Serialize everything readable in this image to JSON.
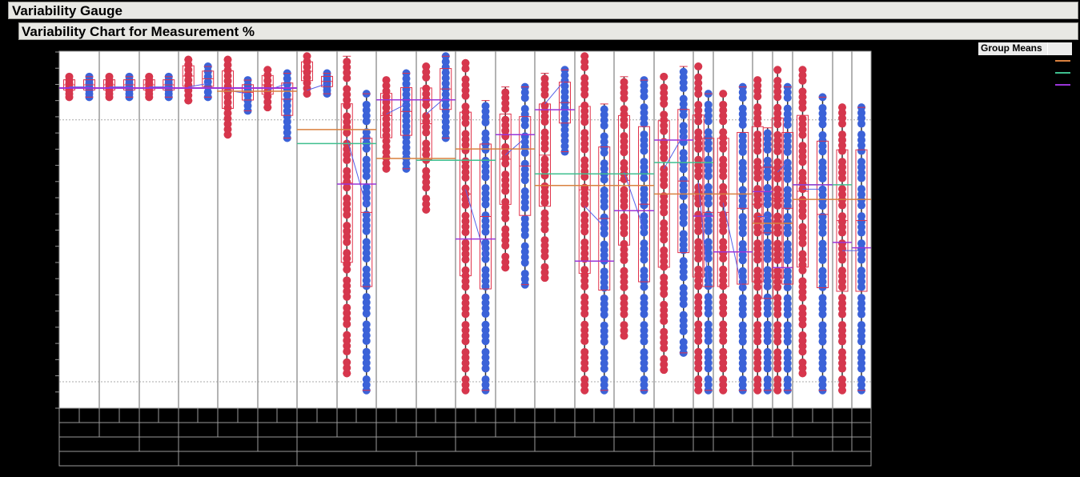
{
  "window": {
    "outline_title": "Variability Gauge",
    "chart_title": "Variability Chart for Measurement %"
  },
  "legend": {
    "title": "Group Means",
    "items": [
      {
        "label": "",
        "color": "#d9813f"
      },
      {
        "label": "",
        "color": "#3fbf8f"
      },
      {
        "label": "",
        "color": "#9a35d8"
      }
    ]
  },
  "colors": {
    "series_a": "#d5374d",
    "series_b": "#3b62d8",
    "box": "#e0324a",
    "connector": "#5560e8",
    "grid_ref": "#a8a8a8",
    "divider": "#9a9a9a"
  },
  "chart_data": {
    "type": "scatter",
    "title": "Variability Chart for Measurement %",
    "xlabel": "",
    "ylabel": "",
    "ylim": [
      0,
      100
    ],
    "y_ticks_count": 23,
    "reference_lines_y": [
      78,
      4
    ],
    "legend_position": "right",
    "note": "Tick labels and axis/group labels render black on black and are not legible; y values are estimated on a 0–100 normalized scale (top of plot = 100).",
    "x_levels": {
      "row1_cells": 41,
      "row2_cells": 23,
      "row3_cells": 14,
      "row4_cells": 6
    },
    "groups": [
      {
        "a": [
          87,
          93
        ],
        "b": [
          87,
          93
        ],
        "mean_a": 90,
        "mean_b": 90
      },
      {
        "a": [
          87,
          93
        ],
        "b": [
          87,
          93
        ],
        "mean_a": 90,
        "mean_b": 90
      },
      {
        "a": [
          87,
          93
        ],
        "b": [
          87,
          93
        ],
        "mean_a": 90,
        "mean_b": 90
      },
      {
        "a": [
          86,
          98
        ],
        "b": [
          87,
          96
        ],
        "mean_a": 90,
        "mean_b": 91
      },
      {
        "a": [
          76,
          98
        ],
        "b": [
          83,
          92
        ],
        "mean_a": 89,
        "mean_b": 88
      },
      {
        "a": [
          84,
          95
        ],
        "b": [
          75,
          94
        ],
        "mean_a": 89,
        "mean_b": 91
      },
      {
        "a": [
          88,
          99
        ],
        "b": [
          88,
          94
        ],
        "mean_a": 89,
        "mean_b": 91
      },
      {
        "a": [
          6,
          99
        ],
        "b": [
          1,
          88
        ],
        "mean_a": 75,
        "mean_b": 55
      },
      {
        "a": [
          66,
          92
        ],
        "b": [
          66,
          94
        ],
        "mean_a": 82,
        "mean_b": 85
      },
      {
        "a": [
          54,
          96
        ],
        "b": [
          75,
          99
        ],
        "mean_a": 82,
        "mean_b": 87
      },
      {
        "a": [
          1,
          97
        ],
        "b": [
          1,
          86
        ],
        "mean_a": 60,
        "mean_b": 40
      },
      {
        "a": [
          37,
          90
        ],
        "b": [
          32,
          90
        ],
        "mean_a": 70,
        "mean_b": 75
      },
      {
        "a": [
          34,
          94
        ],
        "b": [
          71,
          95
        ],
        "mean_a": 85,
        "mean_b": 92
      },
      {
        "a": [
          1,
          99
        ],
        "b": [
          1,
          85
        ],
        "mean_a": 55,
        "mean_b": 49
      },
      {
        "a": [
          17,
          93
        ],
        "b": [
          1,
          92
        ],
        "mean_a": 65,
        "mean_b": 48
      },
      {
        "a": [
          7,
          93
        ],
        "b": [
          12,
          96
        ],
        "mean_a": 66,
        "mean_b": 76
      },
      {
        "a": [
          1,
          96
        ],
        "b": [
          1,
          88
        ],
        "mean_a": 62,
        "mean_b": 32
      },
      {
        "a": [
          1,
          88
        ],
        "b": [
          1,
          90
        ],
        "mean_a": 56,
        "mean_b": 30
      },
      {
        "a": [
          1,
          92
        ],
        "b": [
          1,
          78
        ],
        "mean_a": 52,
        "mean_b": 52
      },
      {
        "a": [
          1,
          95
        ],
        "b": [
          1,
          90
        ],
        "mean_a": 65,
        "mean_b": 68
      },
      {
        "a": [
          6,
          95
        ],
        "b": [
          1,
          87
        ],
        "mean_a": 60,
        "mean_b": 60
      },
      {
        "a": [
          1,
          84
        ],
        "b": [
          1,
          84
        ],
        "mean_a": 42,
        "mean_b": 42
      }
    ],
    "group_means_lines": [
      {
        "series": "orange",
        "segments": [
          [
            371,
            470,
            77.5
          ],
          [
            470,
            569,
            69
          ],
          [
            569,
            668,
            71.8
          ],
          [
            668,
            817,
            61.1
          ],
          [
            817,
            940,
            58.6
          ],
          [
            940,
            990,
            50
          ],
          [
            990,
            1088,
            57
          ]
        ]
      },
      {
        "series": "green",
        "segments": [
          [
            371,
            470,
            73.4
          ],
          [
            520,
            619,
            68.5
          ],
          [
            668,
            817,
            64.5
          ],
          [
            817,
            891,
            67.8
          ],
          [
            990,
            1064,
            61.3
          ]
        ]
      },
      {
        "series": "purple",
        "segments": [
          [
            421,
            470,
            61.5
          ],
          [
            470,
            569,
            86.2
          ],
          [
            569,
            619,
            45.4
          ],
          [
            619,
            668,
            76
          ],
          [
            668,
            718,
            83.3
          ],
          [
            718,
            767,
            38.9
          ],
          [
            767,
            817,
            53.7
          ],
          [
            817,
            866,
            74.4
          ],
          [
            866,
            891,
            52.1
          ],
          [
            891,
            940,
            41.6
          ],
          [
            940,
            965,
            59.3
          ],
          [
            965,
            990,
            37
          ],
          [
            990,
            1040,
            61.3
          ],
          [
            1040,
            1064,
            44.4
          ],
          [
            1064,
            1088,
            42.8
          ]
        ]
      }
    ]
  }
}
